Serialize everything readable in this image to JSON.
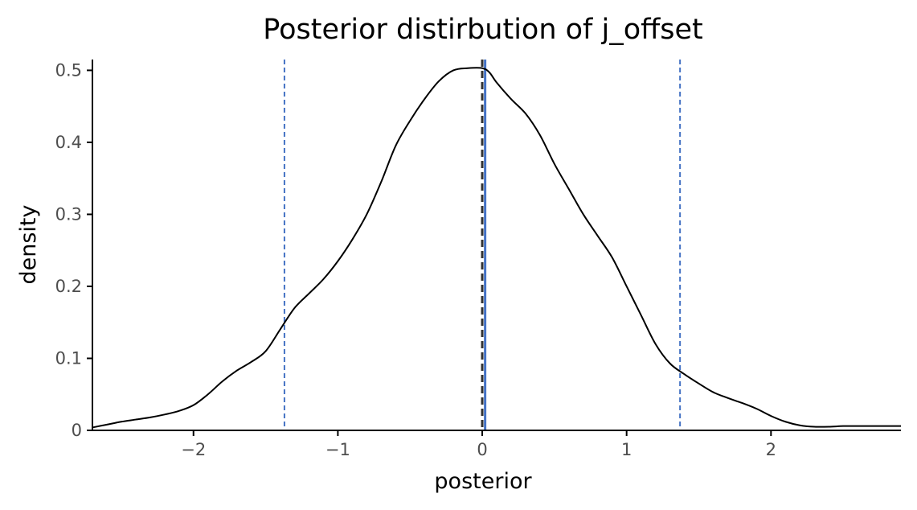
{
  "chart_data": {
    "type": "line",
    "title": "Posterior distirbution of j_offset",
    "xlabel": "posterior",
    "ylabel": "density",
    "xlim": [
      -2.7,
      2.9
    ],
    "ylim": [
      0,
      0.515
    ],
    "grid": false,
    "legend": "none",
    "x_ticks": [
      -2,
      -1,
      0,
      1,
      2
    ],
    "x_tick_labels": [
      "−2",
      "−1",
      "0",
      "1",
      "2"
    ],
    "y_ticks": [
      0,
      0.1,
      0.2,
      0.3,
      0.4,
      0.5
    ],
    "y_tick_labels": [
      "0",
      "0.1",
      "0.2",
      "0.3",
      "0.4",
      "0.5"
    ],
    "series": [
      {
        "x": [
          -2.7,
          -2.6,
          -2.5,
          -2.4,
          -2.3,
          -2.2,
          -2.1,
          -2.0,
          -1.9,
          -1.8,
          -1.7,
          -1.6,
          -1.5,
          -1.4,
          -1.3,
          -1.2,
          -1.1,
          -1.0,
          -0.9,
          -0.8,
          -0.7,
          -0.6,
          -0.5,
          -0.4,
          -0.3,
          -0.2,
          -0.1,
          0.0,
          0.05,
          0.1,
          0.2,
          0.3,
          0.4,
          0.5,
          0.6,
          0.7,
          0.8,
          0.9,
          1.0,
          1.1,
          1.2,
          1.3,
          1.4,
          1.5,
          1.6,
          1.7,
          1.8,
          1.9,
          2.0,
          2.1,
          2.2,
          2.3,
          2.4,
          2.5,
          2.6,
          2.7,
          2.8,
          2.9
        ],
        "y": [
          0.004,
          0.008,
          0.012,
          0.015,
          0.018,
          0.022,
          0.027,
          0.035,
          0.05,
          0.068,
          0.083,
          0.095,
          0.11,
          0.14,
          0.17,
          0.19,
          0.21,
          0.235,
          0.265,
          0.3,
          0.345,
          0.395,
          0.43,
          0.46,
          0.485,
          0.5,
          0.503,
          0.503,
          0.497,
          0.483,
          0.46,
          0.44,
          0.41,
          0.37,
          0.335,
          0.3,
          0.27,
          0.24,
          0.2,
          0.16,
          0.12,
          0.093,
          0.078,
          0.065,
          0.053,
          0.045,
          0.038,
          0.03,
          0.02,
          0.012,
          0.007,
          0.005,
          0.005,
          0.006,
          0.006,
          0.006,
          0.006,
          0.006
        ],
        "color": "#000000"
      }
    ],
    "vlines": [
      {
        "x": -1.37,
        "style": "dashed",
        "color": "#4472c4"
      },
      {
        "x": 0.0,
        "style": "dashed",
        "color": "#333333"
      },
      {
        "x": 0.02,
        "style": "solid",
        "color": "#4472c4"
      },
      {
        "x": 1.37,
        "style": "dashed",
        "color": "#4472c4"
      }
    ]
  }
}
